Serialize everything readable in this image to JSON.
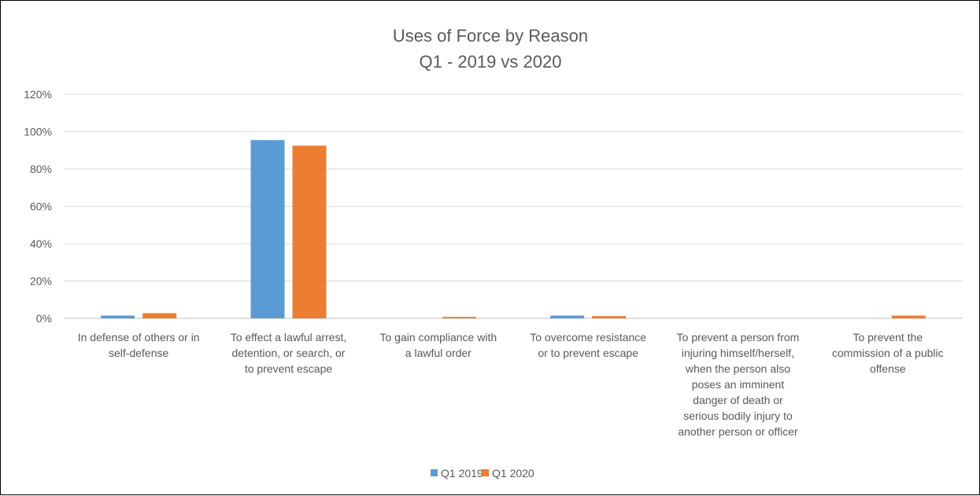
{
  "chart_data": {
    "type": "bar",
    "title": [
      "Uses of Force by Reason",
      "Q1 - 2019 vs 2020"
    ],
    "xlabel": "",
    "ylabel": "",
    "ylim": [
      0,
      120
    ],
    "yticks": [
      "0%",
      "20%",
      "40%",
      "60%",
      "80%",
      "100%",
      "120%"
    ],
    "grid": true,
    "legend_position": "bottom",
    "categories": [
      [
        "In defense of others or in",
        "self-defense"
      ],
      [
        "To effect a lawful arrest,",
        "detention, or search, or",
        "to prevent escape"
      ],
      [
        "To gain compliance with",
        "a lawful order"
      ],
      [
        "To overcome resistance",
        "or to prevent escape"
      ],
      [
        "To prevent a person from",
        "injuring himself/herself,",
        "when the person also",
        "poses an imminent",
        "danger of death or",
        "serious bodily injury to",
        "another person or officer"
      ],
      [
        "To prevent the",
        "commission of a public",
        "offense"
      ]
    ],
    "series": [
      {
        "name": "Q1 2019",
        "color": "#5B9BD5",
        "values": [
          1.5,
          95.5,
          0,
          1.5,
          0,
          0
        ]
      },
      {
        "name": "Q1 2020",
        "color": "#ED7D31",
        "values": [
          2.8,
          92.5,
          0.8,
          1.2,
          0,
          1.5
        ]
      }
    ]
  }
}
